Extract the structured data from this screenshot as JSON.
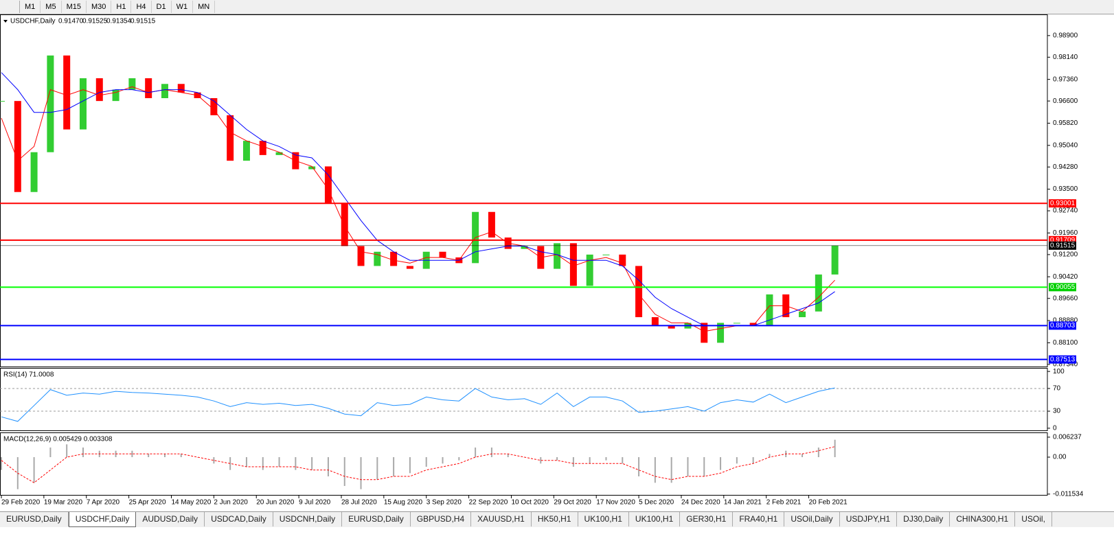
{
  "toolbar": {
    "timeframes": [
      "M1",
      "M5",
      "M15",
      "M30",
      "H1",
      "H4",
      "D1",
      "W1",
      "MN"
    ]
  },
  "chart_data": [
    {
      "type": "candle-close",
      "symbol": "USDCHF,Daily",
      "ohlc": [
        "0.91470",
        "0.91525",
        "0.91354",
        "0.91515"
      ],
      "x": [
        0,
        5,
        10,
        15,
        20,
        25,
        30,
        35,
        40,
        45,
        50,
        55,
        60,
        65,
        70,
        75,
        80,
        85,
        90,
        95,
        100,
        105,
        110,
        115,
        120,
        125,
        130,
        135,
        140,
        145,
        150,
        155,
        160,
        165,
        170,
        175,
        180,
        185,
        190,
        195,
        200,
        205,
        210,
        215,
        220,
        225,
        230,
        235,
        240,
        245,
        250,
        255
      ],
      "xlim": [
        0,
        320
      ],
      "xticks": [
        {
          "value": 0,
          "label": "29 Feb 2020"
        },
        {
          "value": 13,
          "label": "19 Mar 2020"
        },
        {
          "value": 26,
          "label": "7 Apr 2020"
        },
        {
          "value": 39,
          "label": "25 Apr 2020"
        },
        {
          "value": 52,
          "label": "14 May 2020"
        },
        {
          "value": 65,
          "label": "2 Jun 2020"
        },
        {
          "value": 78,
          "label": "20 Jun 2020"
        },
        {
          "value": 91,
          "label": "9 Jul 2020"
        },
        {
          "value": 104,
          "label": "28 Jul 2020"
        },
        {
          "value": 117,
          "label": "15 Aug 2020"
        },
        {
          "value": 130,
          "label": "3 Sep 2020"
        },
        {
          "value": 143,
          "label": "22 Sep 2020"
        },
        {
          "value": 156,
          "label": "10 Oct 2020"
        },
        {
          "value": 169,
          "label": "29 Oct 2020"
        },
        {
          "value": 182,
          "label": "17 Nov 2020"
        },
        {
          "value": 195,
          "label": "5 Dec 2020"
        },
        {
          "value": 208,
          "label": "24 Dec 2020"
        },
        {
          "value": 221,
          "label": "14 Jan 2021"
        },
        {
          "value": 234,
          "label": "2 Feb 2021"
        },
        {
          "value": 247,
          "label": "20 Feb 2021"
        }
      ],
      "ylim": [
        0.8724,
        0.9962
      ],
      "yticks": [
        {
          "value": 0.989,
          "label": "0.98900"
        },
        {
          "value": 0.9814,
          "label": "0.98140"
        },
        {
          "value": 0.9736,
          "label": "0.97360"
        },
        {
          "value": 0.966,
          "label": "0.96600"
        },
        {
          "value": 0.9582,
          "label": "0.95820"
        },
        {
          "value": 0.9504,
          "label": "0.95040"
        },
        {
          "value": 0.9428,
          "label": "0.94280"
        },
        {
          "value": 0.935,
          "label": "0.93500"
        },
        {
          "value": 0.9274,
          "label": "0.92740"
        },
        {
          "value": 0.9196,
          "label": "0.91960"
        },
        {
          "value": 0.912,
          "label": "0.91200"
        },
        {
          "value": 0.9042,
          "label": "0.90420"
        },
        {
          "value": 0.8966,
          "label": "0.89660"
        },
        {
          "value": 0.8888,
          "label": "0.88880"
        },
        {
          "value": 0.881,
          "label": "0.88100"
        },
        {
          "value": 0.8734,
          "label": "0.87340"
        }
      ],
      "series": [
        {
          "name": "Close",
          "up_color": "#32cd32",
          "down_color": "#ff0000",
          "values": [
            0.966,
            0.934,
            0.948,
            0.982,
            0.956,
            0.974,
            0.966,
            0.97,
            0.974,
            0.967,
            0.972,
            0.969,
            0.967,
            0.961,
            0.945,
            0.952,
            0.947,
            0.948,
            0.942,
            0.943,
            0.93,
            0.915,
            0.908,
            0.913,
            0.908,
            0.907,
            0.913,
            0.911,
            0.909,
            0.927,
            0.918,
            0.914,
            0.915,
            0.907,
            0.916,
            0.901,
            0.912,
            0.912,
            0.908,
            0.89,
            0.887,
            0.886,
            0.888,
            0.881,
            0.888,
            0.888,
            0.887,
            0.898,
            0.89,
            0.892,
            0.905,
            0.9152
          ]
        },
        {
          "name": "MA fast",
          "color": "#ff0000",
          "values": [
            0.96,
            0.945,
            0.95,
            0.97,
            0.968,
            0.97,
            0.968,
            0.969,
            0.971,
            0.969,
            0.97,
            0.969,
            0.968,
            0.963,
            0.955,
            0.952,
            0.95,
            0.948,
            0.945,
            0.943,
            0.935,
            0.922,
            0.913,
            0.912,
            0.91,
            0.909,
            0.911,
            0.911,
            0.91,
            0.918,
            0.92,
            0.916,
            0.915,
            0.911,
            0.912,
            0.908,
            0.91,
            0.911,
            0.909,
            0.898,
            0.891,
            0.888,
            0.888,
            0.885,
            0.886,
            0.887,
            0.887,
            0.894,
            0.894,
            0.892,
            0.897,
            0.903
          ]
        },
        {
          "name": "MA slow",
          "color": "#0000ff",
          "values": [
            0.976,
            0.97,
            0.962,
            0.962,
            0.963,
            0.966,
            0.969,
            0.97,
            0.97,
            0.969,
            0.97,
            0.97,
            0.969,
            0.966,
            0.961,
            0.956,
            0.952,
            0.95,
            0.947,
            0.946,
            0.94,
            0.932,
            0.924,
            0.917,
            0.913,
            0.91,
            0.91,
            0.91,
            0.91,
            0.913,
            0.914,
            0.915,
            0.915,
            0.913,
            0.912,
            0.91,
            0.91,
            0.91,
            0.908,
            0.903,
            0.897,
            0.893,
            0.89,
            0.887,
            0.887,
            0.887,
            0.887,
            0.889,
            0.891,
            0.893,
            0.895,
            0.899
          ]
        }
      ],
      "levels": [
        {
          "value": 0.93001,
          "color": "#ff0000"
        },
        {
          "value": 0.91709,
          "color": "#ff0000"
        },
        {
          "value": 0.91515,
          "color": "#000000"
        },
        {
          "value": 0.90055,
          "color": "#00ff00"
        },
        {
          "value": 0.88703,
          "color": "#0000ff"
        },
        {
          "value": 0.87513,
          "color": "#0000ff"
        }
      ]
    },
    {
      "type": "line",
      "title": "RSI(14) 71.0008",
      "xlim": [
        0,
        320
      ],
      "ylim": [
        -5,
        105
      ],
      "yticks": [
        100,
        70,
        30,
        0
      ],
      "levels": [
        70,
        30
      ],
      "series": [
        {
          "name": "RSI",
          "color": "#1e90ff",
          "values": [
            20,
            12,
            40,
            68,
            58,
            62,
            60,
            65,
            63,
            62,
            60,
            58,
            55,
            48,
            38,
            45,
            42,
            44,
            40,
            42,
            35,
            25,
            22,
            45,
            40,
            42,
            55,
            50,
            48,
            70,
            55,
            50,
            52,
            42,
            62,
            38,
            55,
            55,
            48,
            28,
            30,
            34,
            38,
            30,
            45,
            50,
            46,
            60,
            45,
            55,
            65,
            71
          ]
        }
      ]
    },
    {
      "type": "macd",
      "title": "MACD(12,26,9) 0.005429 0.003308",
      "xlim": [
        0,
        320
      ],
      "ylim": [
        -0.012,
        0.0075
      ],
      "yticks": [
        {
          "value": 0.006237,
          "label": "0.006237"
        },
        {
          "value": 0,
          "label": "0.00"
        },
        {
          "value": -0.011534,
          "label": "-0.011534"
        }
      ],
      "series": [
        {
          "name": "MACD",
          "color": "#a9a9a9",
          "values": [
            -0.004,
            -0.01,
            -0.008,
            0.003,
            0.004,
            0.003,
            0.002,
            0.002,
            0.002,
            0.001,
            0.001,
            0.001,
            0.0,
            -0.002,
            -0.004,
            -0.003,
            -0.004,
            -0.003,
            -0.004,
            -0.004,
            -0.006,
            -0.009,
            -0.01,
            -0.007,
            -0.006,
            -0.005,
            -0.003,
            -0.002,
            -0.001,
            0.003,
            0.003,
            0.001,
            0.0,
            -0.002,
            -0.001,
            -0.003,
            -0.002,
            -0.001,
            -0.002,
            -0.006,
            -0.008,
            -0.008,
            -0.006,
            -0.006,
            -0.004,
            -0.002,
            -0.002,
            0.001,
            0.002,
            0.001,
            0.003,
            0.005429
          ]
        },
        {
          "name": "Signal",
          "color": "#ff0000",
          "values": [
            -0.001,
            -0.005,
            -0.008,
            -0.004,
            0.0,
            0.001,
            0.001,
            0.001,
            0.001,
            0.001,
            0.001,
            0.001,
            0.0,
            -0.001,
            -0.002,
            -0.003,
            -0.003,
            -0.003,
            -0.003,
            -0.004,
            -0.004,
            -0.006,
            -0.007,
            -0.007,
            -0.006,
            -0.006,
            -0.004,
            -0.003,
            -0.002,
            0.0,
            0.001,
            0.001,
            0.0,
            -0.001,
            -0.001,
            -0.002,
            -0.002,
            -0.002,
            -0.002,
            -0.004,
            -0.006,
            -0.007,
            -0.006,
            -0.006,
            -0.005,
            -0.003,
            -0.002,
            0.0,
            0.001,
            0.001,
            0.002,
            0.003308
          ]
        }
      ]
    }
  ],
  "tabs": {
    "items": [
      "EURUSD,Daily",
      "USDCHF,Daily",
      "AUDUSD,Daily",
      "USDCAD,Daily",
      "USDCNH,Daily",
      "EURUSD,Daily",
      "GBPUSD,H4",
      "XAUUSD,H1",
      "HK50,H1",
      "UK100,H1",
      "UK100,H1",
      "GER30,H1",
      "FRA40,H1",
      "USOil,Daily",
      "USDJPY,H1",
      "DJ30,Daily",
      "CHINA300,H1",
      "USOil,"
    ],
    "active": 1
  }
}
